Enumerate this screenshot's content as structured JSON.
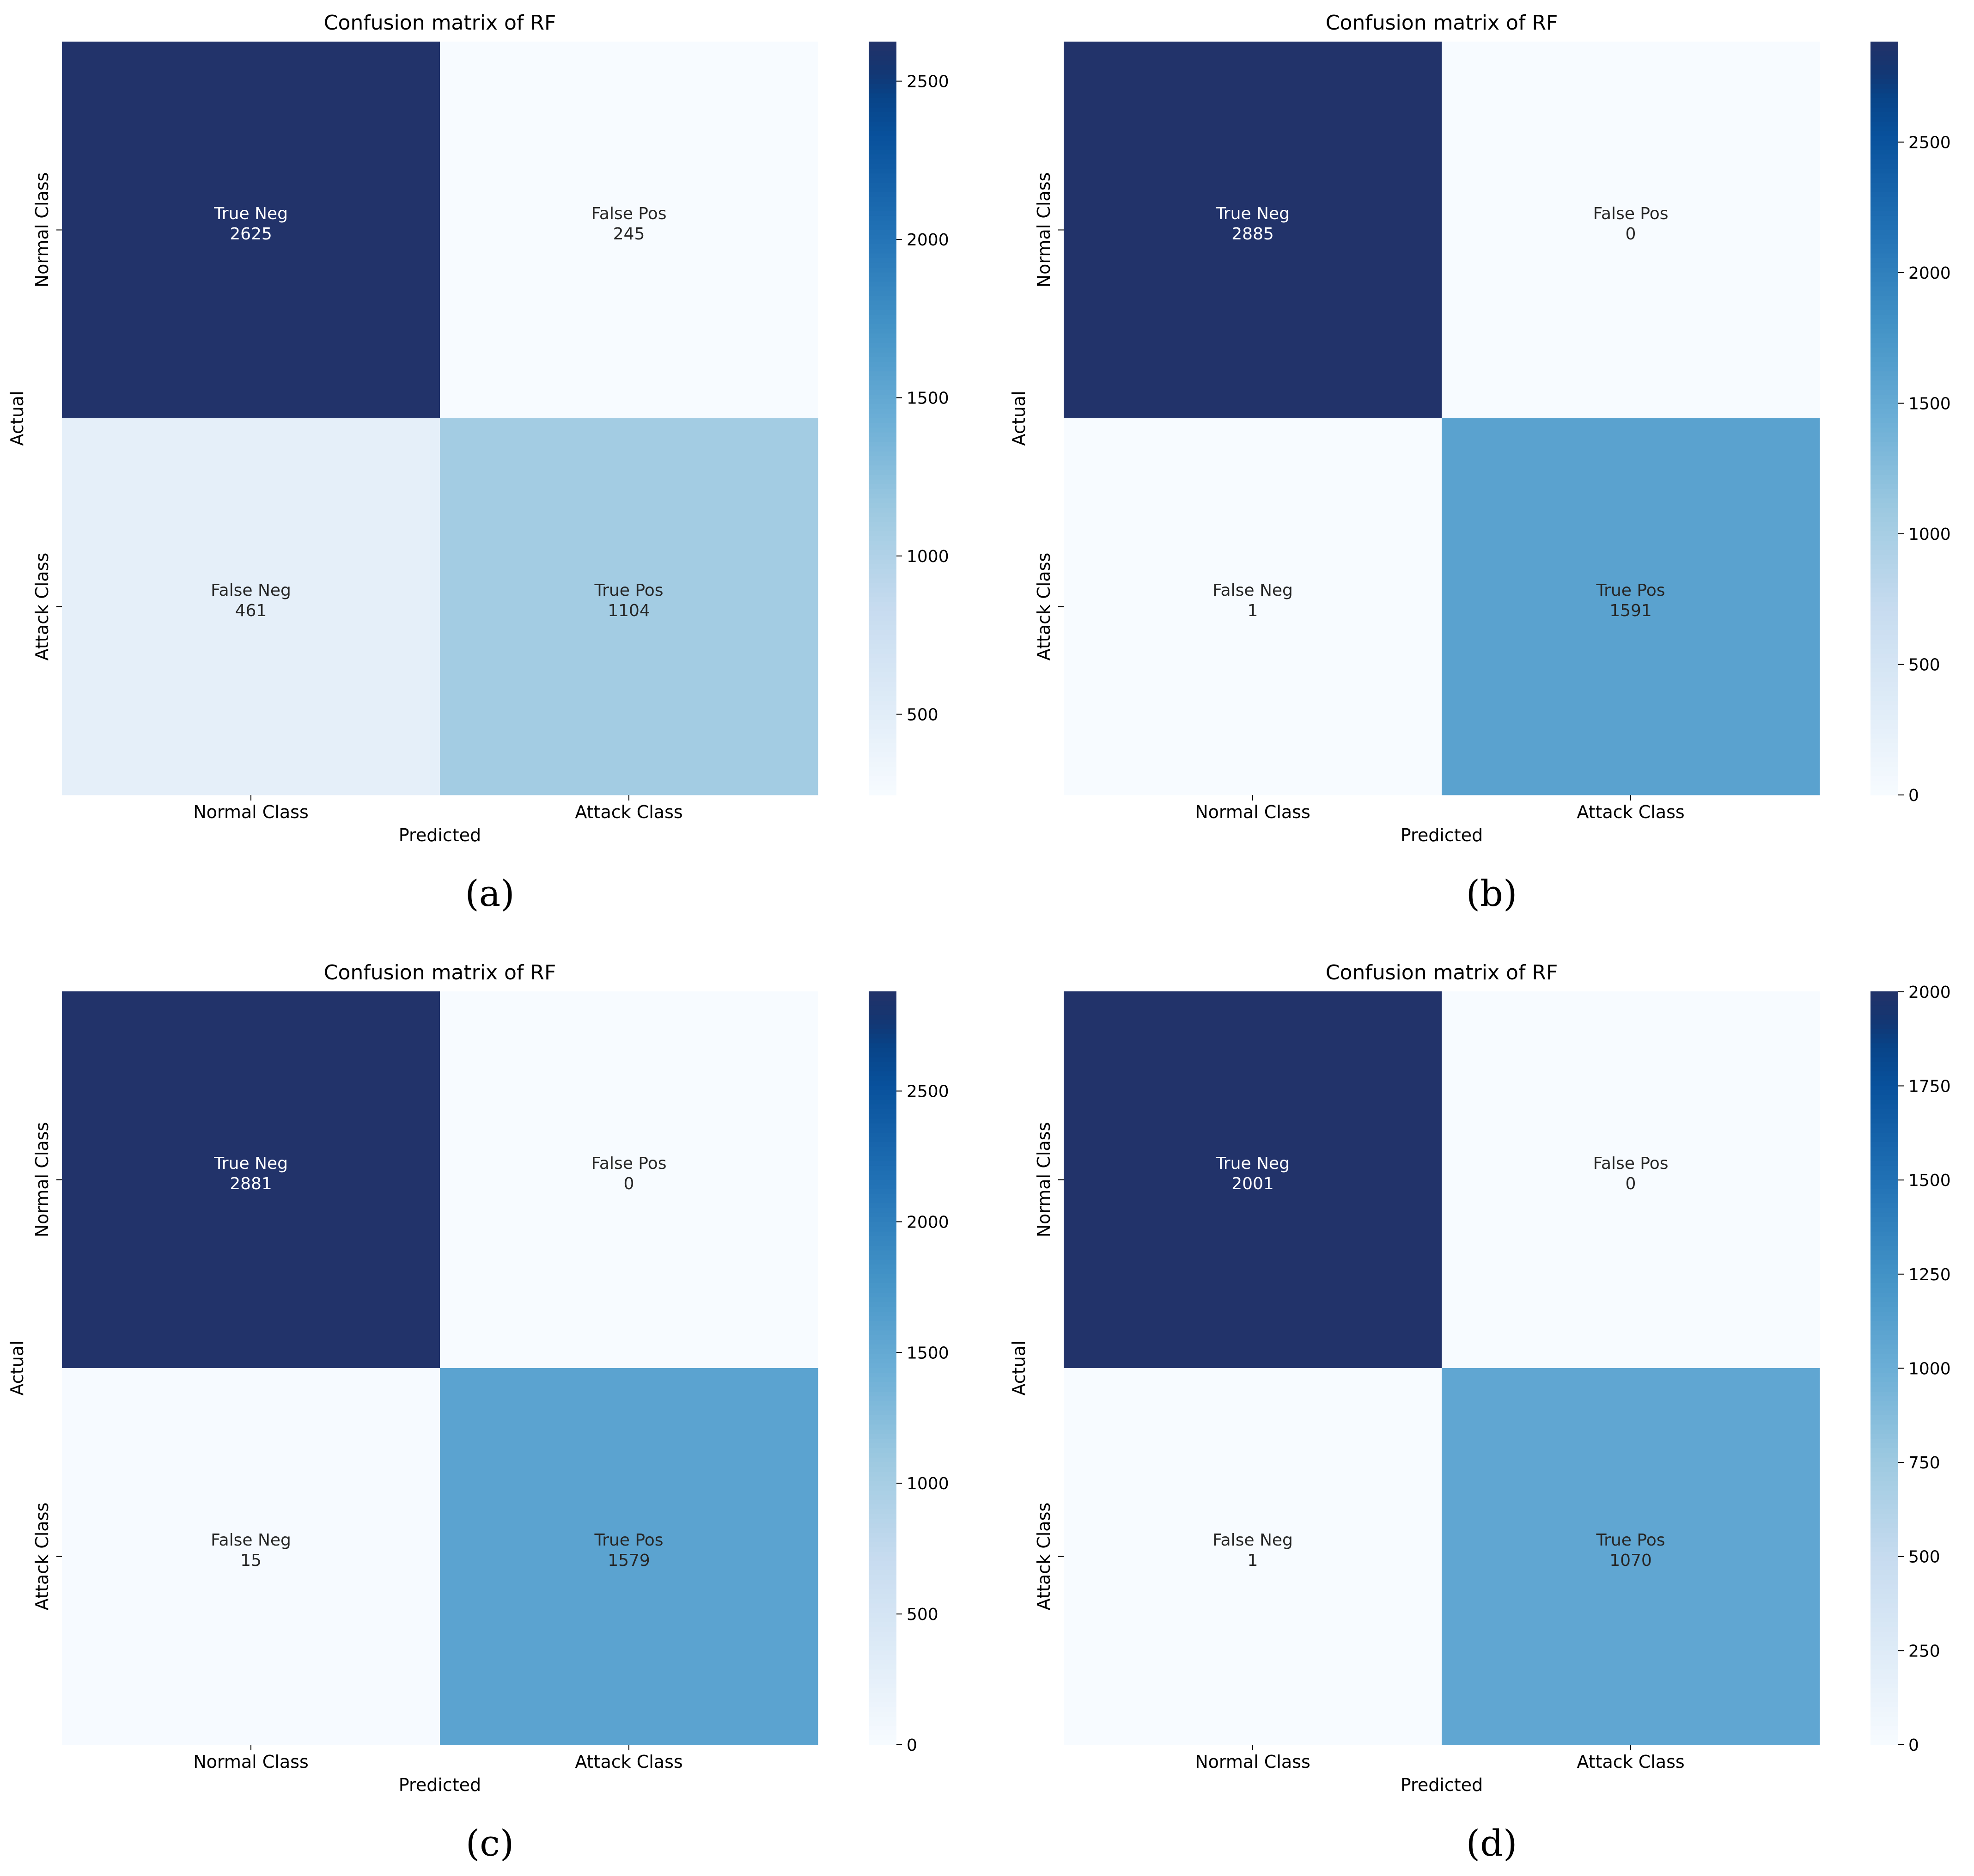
{
  "chart_data": [
    {
      "type": "heatmap",
      "panel": "(a)",
      "title": "Confusion matrix of RF",
      "xlabel": "Predicted",
      "ylabel": "Actual",
      "x_categories": [
        "Normal Class",
        "Attack Class"
      ],
      "y_categories": [
        "Normal Class",
        "Attack Class"
      ],
      "cells": [
        [
          {
            "label": "True Neg",
            "value": 2625
          },
          {
            "label": "False Pos",
            "value": 245
          }
        ],
        [
          {
            "label": "False Neg",
            "value": 461
          },
          {
            "label": "True Pos",
            "value": 1104
          }
        ]
      ],
      "colorbar": {
        "min": 245,
        "max": 2625,
        "ticks": [
          500,
          1000,
          1500,
          2000,
          2500
        ]
      }
    },
    {
      "type": "heatmap",
      "panel": "(b)",
      "title": "Confusion matrix of RF",
      "xlabel": "Predicted",
      "ylabel": "Actual",
      "x_categories": [
        "Normal Class",
        "Attack Class"
      ],
      "y_categories": [
        "Normal Class",
        "Attack Class"
      ],
      "cells": [
        [
          {
            "label": "True Neg",
            "value": 2885
          },
          {
            "label": "False Pos",
            "value": 0
          }
        ],
        [
          {
            "label": "False Neg",
            "value": 1
          },
          {
            "label": "True Pos",
            "value": 1591
          }
        ]
      ],
      "colorbar": {
        "min": 0,
        "max": 2885,
        "ticks": [
          0,
          500,
          1000,
          1500,
          2000,
          2500
        ]
      }
    },
    {
      "type": "heatmap",
      "panel": "(c)",
      "title": "Confusion matrix of RF",
      "xlabel": "Predicted",
      "ylabel": "Actual",
      "x_categories": [
        "Normal Class",
        "Attack Class"
      ],
      "y_categories": [
        "Normal Class",
        "Attack Class"
      ],
      "cells": [
        [
          {
            "label": "True Neg",
            "value": 2881
          },
          {
            "label": "False Pos",
            "value": 0
          }
        ],
        [
          {
            "label": "False Neg",
            "value": 15
          },
          {
            "label": "True Pos",
            "value": 1579
          }
        ]
      ],
      "colorbar": {
        "min": 0,
        "max": 2881,
        "ticks": [
          0,
          500,
          1000,
          1500,
          2000,
          2500
        ]
      }
    },
    {
      "type": "heatmap",
      "panel": "(d)",
      "title": "Confusion matrix of RF",
      "xlabel": "Predicted",
      "ylabel": "Actual",
      "x_categories": [
        "Normal Class",
        "Attack Class"
      ],
      "y_categories": [
        "Normal Class",
        "Attack Class"
      ],
      "cells": [
        [
          {
            "label": "True Neg",
            "value": 2001
          },
          {
            "label": "False Pos",
            "value": 0
          }
        ],
        [
          {
            "label": "False Neg",
            "value": 1
          },
          {
            "label": "True Pos",
            "value": 1070
          }
        ]
      ],
      "colorbar": {
        "min": 0,
        "max": 2001,
        "ticks": [
          0,
          250,
          500,
          750,
          1000,
          1250,
          1500,
          1750,
          2000
        ]
      }
    }
  ],
  "colors": {
    "colormap": [
      "#f7fbff",
      "#deebf7",
      "#c6dbef",
      "#9ecae1",
      "#6baed6",
      "#4292c6",
      "#2171b5",
      "#08519c",
      "#08306b"
    ],
    "capped_max": "#22336a",
    "text_dark": "#262626",
    "text_light": "#ffffff"
  }
}
